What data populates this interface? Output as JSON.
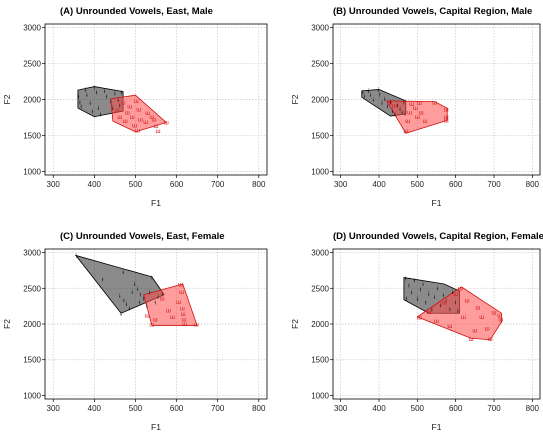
{
  "colors": {
    "grid": "#c8c8c8",
    "frame": "#000000",
    "black_fill": "#2b2b2b",
    "black_marker": "#111111",
    "red_fill": "#ff4d4d",
    "red_stroke": "#d01010",
    "red_marker": "#d01818"
  },
  "chart_data": [
    {
      "type": "scatter",
      "title": "(A) Unrounded Vowels, East, Male",
      "xlabel": "F1",
      "ylabel": "F2",
      "xlim": [
        280,
        820
      ],
      "ylim": [
        950,
        3050
      ],
      "x_ticks": [
        "300",
        "400",
        "500",
        "600",
        "700",
        "800"
      ],
      "y_ticks": [
        "1000",
        "1500",
        "2000",
        "2500",
        "3000"
      ],
      "grid": true,
      "series": [
        {
          "color": "black",
          "marker": "ɨ",
          "hull": [
            [
              360,
              2130
            ],
            [
              400,
              2180
            ],
            [
              470,
              2110
            ],
            [
              470,
              1840
            ],
            [
              400,
              1760
            ],
            [
              360,
              1880
            ]
          ],
          "points": [
            [
              360,
              2100
            ],
            [
              362,
              2040
            ],
            [
              365,
              1960
            ],
            [
              368,
              1900
            ],
            [
              378,
              2130
            ],
            [
              382,
              2060
            ],
            [
              390,
              1950
            ],
            [
              395,
              1830
            ],
            [
              400,
              2170
            ],
            [
              405,
              2100
            ],
            [
              410,
              1880
            ],
            [
              415,
              1790
            ],
            [
              425,
              2120
            ],
            [
              430,
              2040
            ],
            [
              440,
              1970
            ],
            [
              445,
              1880
            ],
            [
              450,
              2080
            ],
            [
              458,
              1990
            ],
            [
              462,
              1920
            ],
            [
              466,
              2100
            ]
          ]
        },
        {
          "color": "red",
          "marker": "ɯ",
          "hull": [
            [
              440,
              2010
            ],
            [
              500,
              2060
            ],
            [
              575,
              1680
            ],
            [
              500,
              1550
            ],
            [
              445,
              1700
            ]
          ],
          "points": [
            [
              455,
              1850
            ],
            [
              462,
              1760
            ],
            [
              470,
              1960
            ],
            [
              475,
              1700
            ],
            [
              480,
              1820
            ],
            [
              486,
              1900
            ],
            [
              492,
              1760
            ],
            [
              498,
              1640
            ],
            [
              502,
              1980
            ],
            [
              505,
              1570
            ],
            [
              508,
              1860
            ],
            [
              512,
              1720
            ],
            [
              525,
              1690
            ],
            [
              530,
              1810
            ],
            [
              540,
              1760
            ],
            [
              545,
              1720
            ],
            [
              550,
              1630
            ],
            [
              555,
              1560
            ],
            [
              575,
              1680
            ]
          ]
        }
      ]
    },
    {
      "type": "scatter",
      "title": "(B) Unrounded Vowels, Capital Region, Male",
      "xlabel": "F1",
      "ylabel": "F2",
      "xlim": [
        280,
        820
      ],
      "ylim": [
        950,
        3050
      ],
      "x_ticks": [
        "300",
        "400",
        "500",
        "600",
        "700",
        "800"
      ],
      "y_ticks": [
        "1000",
        "1500",
        "2000",
        "2500",
        "3000"
      ],
      "grid": true,
      "series": [
        {
          "color": "black",
          "marker": "ɨ",
          "hull": [
            [
              355,
              2120
            ],
            [
              400,
              2140
            ],
            [
              470,
              1980
            ],
            [
              470,
              1800
            ],
            [
              430,
              1770
            ],
            [
              355,
              2030
            ]
          ],
          "points": [
            [
              358,
              2100
            ],
            [
              362,
              2050
            ],
            [
              372,
              2120
            ],
            [
              378,
              2060
            ],
            [
              385,
              1990
            ],
            [
              398,
              2130
            ],
            [
              402,
              2070
            ],
            [
              408,
              1950
            ],
            [
              415,
              2010
            ],
            [
              422,
              1900
            ],
            [
              430,
              1960
            ],
            [
              435,
              1840
            ],
            [
              442,
              1790
            ],
            [
              448,
              1920
            ],
            [
              455,
              1870
            ],
            [
              460,
              1820
            ],
            [
              465,
              1960
            ],
            [
              468,
              1800
            ]
          ]
        },
        {
          "color": "red",
          "marker": "ɯ",
          "hull": [
            [
              420,
              1980
            ],
            [
              545,
              1970
            ],
            [
              578,
              1880
            ],
            [
              578,
              1710
            ],
            [
              470,
              1530
            ]
          ],
          "points": [
            [
              428,
              1960
            ],
            [
              440,
              1920
            ],
            [
              470,
              1560
            ],
            [
              475,
              1700
            ],
            [
              480,
              1820
            ],
            [
              485,
              1940
            ],
            [
              495,
              1880
            ],
            [
              500,
              1760
            ],
            [
              505,
              1950
            ],
            [
              510,
              1820
            ],
            [
              520,
              1700
            ],
            [
              545,
              1960
            ],
            [
              575,
              1860
            ],
            [
              575,
              1760
            ],
            [
              575,
              1710
            ]
          ]
        }
      ]
    },
    {
      "type": "scatter",
      "title": "(C) Unrounded Vowels, East, Female",
      "xlabel": "F1",
      "ylabel": "F2",
      "xlim": [
        280,
        820
      ],
      "ylim": [
        950,
        3050
      ],
      "x_ticks": [
        "300",
        "400",
        "500",
        "600",
        "700",
        "800"
      ],
      "y_ticks": [
        "1000",
        "1500",
        "2000",
        "2500",
        "3000"
      ],
      "grid": true,
      "series": [
        {
          "color": "black",
          "marker": "ɨ",
          "hull": [
            [
              355,
              2960
            ],
            [
              540,
              2660
            ],
            [
              570,
              2410
            ],
            [
              465,
              2150
            ]
          ],
          "points": [
            [
              357,
              2950
            ],
            [
              420,
              2620
            ],
            [
              462,
              2390
            ],
            [
              465,
              2140
            ],
            [
              470,
              2730
            ],
            [
              472,
              2330
            ],
            [
              478,
              2280
            ],
            [
              485,
              2220
            ],
            [
              492,
              2450
            ],
            [
              498,
              2560
            ],
            [
              505,
              2490
            ],
            [
              510,
              2300
            ],
            [
              512,
              2410
            ],
            [
              520,
              2360
            ],
            [
              528,
              2250
            ],
            [
              535,
              2440
            ],
            [
              540,
              2650
            ],
            [
              548,
              2300
            ],
            [
              555,
              2380
            ],
            [
              565,
              2410
            ]
          ]
        },
        {
          "color": "red",
          "marker": "ɯ",
          "hull": [
            [
              520,
              2410
            ],
            [
              615,
              2560
            ],
            [
              650,
              1980
            ],
            [
              540,
              1980
            ]
          ],
          "points": [
            [
              528,
              2120
            ],
            [
              540,
              1990
            ],
            [
              548,
              2060
            ],
            [
              565,
              2360
            ],
            [
              580,
              2190
            ],
            [
              590,
              2100
            ],
            [
              605,
              2310
            ],
            [
              610,
              2550
            ],
            [
              612,
              2450
            ],
            [
              614,
              2220
            ],
            [
              616,
              2140
            ],
            [
              618,
              2060
            ],
            [
              620,
              2000
            ],
            [
              648,
              1990
            ]
          ]
        }
      ]
    },
    {
      "type": "scatter",
      "title": "(D) Unrounded Vowels, Capital Region, Female",
      "xlabel": "F1",
      "ylabel": "F2",
      "xlim": [
        280,
        820
      ],
      "ylim": [
        950,
        3050
      ],
      "x_ticks": [
        "300",
        "400",
        "500",
        "600",
        "700",
        "800"
      ],
      "y_ticks": [
        "1000",
        "1500",
        "2000",
        "2500",
        "3000"
      ],
      "grid": true,
      "series": [
        {
          "color": "black",
          "marker": "ɨ",
          "hull": [
            [
              465,
              2650
            ],
            [
              570,
              2560
            ],
            [
              610,
              2460
            ],
            [
              610,
              2150
            ],
            [
              530,
              2150
            ],
            [
              465,
              2340
            ]
          ],
          "points": [
            [
              470,
              2640
            ],
            [
              472,
              2360
            ],
            [
              478,
              2540
            ],
            [
              485,
              2440
            ],
            [
              492,
              2610
            ],
            [
              500,
              2350
            ],
            [
              508,
              2480
            ],
            [
              515,
              2560
            ],
            [
              522,
              2300
            ],
            [
              530,
              2420
            ],
            [
              538,
              2200
            ],
            [
              545,
              2380
            ],
            [
              552,
              2500
            ],
            [
              560,
              2260
            ],
            [
              568,
              2400
            ],
            [
              575,
              2320
            ],
            [
              585,
              2200
            ],
            [
              592,
              2450
            ],
            [
              600,
              2300
            ],
            [
              606,
              2180
            ]
          ]
        },
        {
          "color": "red",
          "marker": "ɯ",
          "hull": [
            [
              500,
              2100
            ],
            [
              615,
              2520
            ],
            [
              720,
              2150
            ],
            [
              720,
              2030
            ],
            [
              690,
              1780
            ],
            [
              640,
              1800
            ]
          ],
          "points": [
            [
              505,
              2090
            ],
            [
              530,
              2170
            ],
            [
              550,
              2040
            ],
            [
              570,
              2300
            ],
            [
              585,
              1970
            ],
            [
              600,
              2420
            ],
            [
              612,
              2500
            ],
            [
              620,
              2100
            ],
            [
              630,
              2330
            ],
            [
              640,
              1790
            ],
            [
              650,
              1910
            ],
            [
              658,
              2230
            ],
            [
              668,
              2100
            ],
            [
              682,
              1940
            ],
            [
              690,
              1790
            ],
            [
              700,
              2160
            ],
            [
              715,
              2120
            ],
            [
              718,
              2060
            ]
          ]
        }
      ]
    }
  ]
}
